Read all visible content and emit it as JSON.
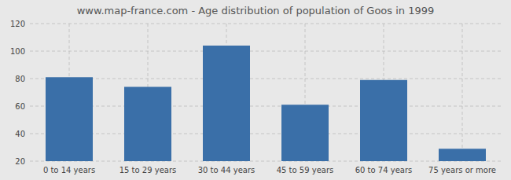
{
  "chart_data": {
    "type": "bar",
    "title": "www.map-france.com - Age distribution of population of Goos in 1999",
    "categories": [
      "0 to 14 years",
      "15 to 29 years",
      "30 to 44 years",
      "45 to 59 years",
      "60 to 74 years",
      "75 years or more"
    ],
    "values": [
      81,
      74,
      104,
      61,
      79,
      29
    ],
    "color": "#3a6fa8",
    "ylim": [
      20,
      120
    ],
    "yticks": [
      20,
      40,
      60,
      80,
      100,
      120
    ],
    "grid": true
  }
}
